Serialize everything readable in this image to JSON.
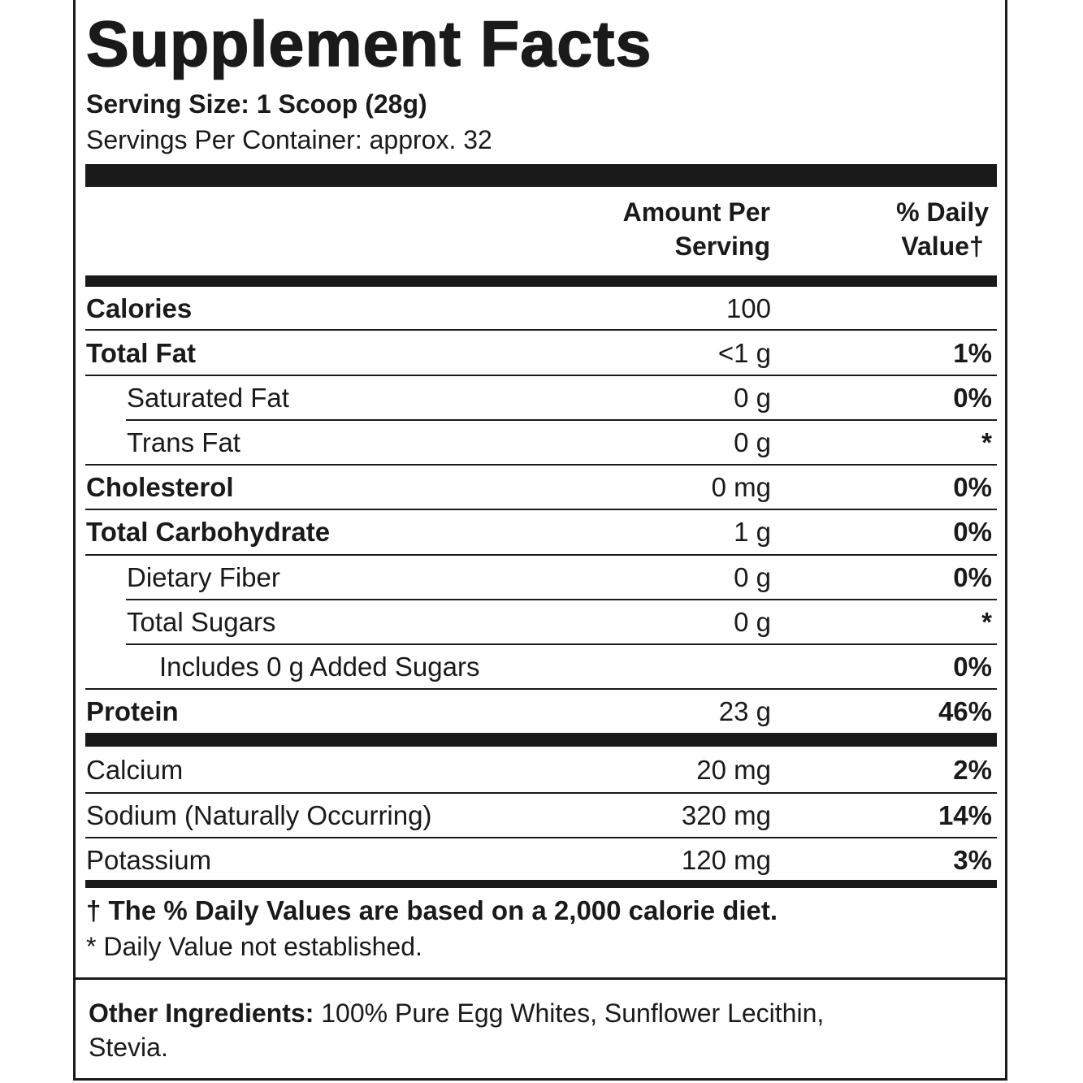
{
  "label": {
    "title": "Supplement Facts",
    "serving_size": "Serving Size: 1 Scoop (28g)",
    "servings_per_container": "Servings Per Container: approx. 32",
    "header": {
      "amount_line1": "Amount Per",
      "amount_line2": "Serving",
      "dv_line1": "% Daily",
      "dv_line2": "Value†"
    },
    "rows": [
      {
        "name": "Calories",
        "amount": "100",
        "dv": ""
      },
      {
        "name": "Total Fat",
        "amount": "<1 g",
        "dv": "1%"
      },
      {
        "name": "Saturated Fat",
        "amount": "0 g",
        "dv": "0%"
      },
      {
        "name": "Trans Fat",
        "amount": "0 g",
        "dv": "*"
      },
      {
        "name": "Cholesterol",
        "amount": "0 mg",
        "dv": "0%"
      },
      {
        "name": "Total Carbohydrate",
        "amount": "1 g",
        "dv": "0%"
      },
      {
        "name": "Dietary Fiber",
        "amount": "0 g",
        "dv": "0%"
      },
      {
        "name": "Total Sugars",
        "amount": "0 g",
        "dv": "*"
      },
      {
        "name": "Includes 0 g Added Sugars",
        "amount": "",
        "dv": "0%"
      },
      {
        "name": "Protein",
        "amount": "23 g",
        "dv": "46%"
      },
      {
        "name": "Calcium",
        "amount": "20 mg",
        "dv": "2%"
      },
      {
        "name": "Sodium (Naturally Occurring)",
        "amount": "320 mg",
        "dv": "14%"
      },
      {
        "name": "Potassium",
        "amount": "120 mg",
        "dv": "3%"
      }
    ],
    "footnote_dv": "† The % Daily Values are based on a 2,000 calorie diet.",
    "footnote_star": "* Daily Value not established.",
    "other_ingredients_label": "Other Ingredients:",
    "other_ingredients_text": "100% Pure Egg Whites, Sunflower Lecithin, Stevia."
  }
}
